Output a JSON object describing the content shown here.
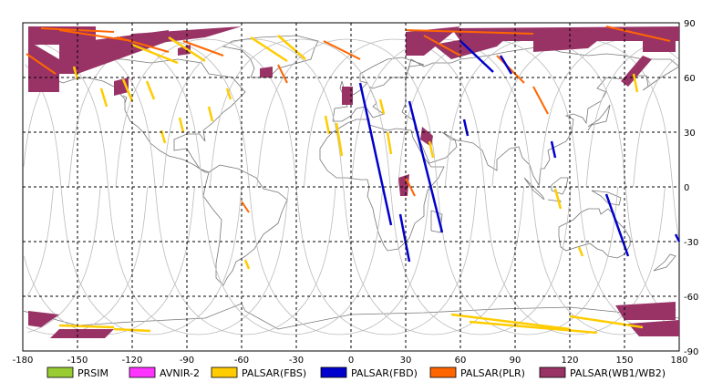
{
  "map": {
    "x_ticks": [
      "-180",
      "-150",
      "-120",
      "-90",
      "-60",
      "-30",
      "0",
      "30",
      "60",
      "90",
      "120",
      "150",
      "180"
    ],
    "y_ticks": [
      "90",
      "60",
      "30",
      "0",
      "-30",
      "-60",
      "-90"
    ],
    "lon_range": [
      -180,
      180
    ],
    "lat_range": [
      -90,
      90
    ],
    "grid": true
  },
  "legend": [
    {
      "label": "PRSIM",
      "color": "#99cc33"
    },
    {
      "label": "AVNIR-2",
      "color": "#ff33ff"
    },
    {
      "label": "PALSAR(FBS)",
      "color": "#ffcc00"
    },
    {
      "label": "PALSAR(FBD)",
      "color": "#0000cc"
    },
    {
      "label": "PALSAR(PLR)",
      "color": "#ff6600"
    },
    {
      "label": "PALSAR(WB1/WB2)",
      "color": "#993366"
    }
  ],
  "swaths": {
    "fbs": [
      [
        [
          -152,
          66
        ],
        [
          -150,
          59
        ]
      ],
      [
        [
          -137,
          54
        ],
        [
          -134,
          44
        ]
      ],
      [
        [
          -125,
          59
        ],
        [
          -120,
          47
        ]
      ],
      [
        [
          -112,
          58
        ],
        [
          -108,
          48
        ]
      ],
      [
        [
          -104,
          31
        ],
        [
          -102,
          24
        ]
      ],
      [
        [
          -94,
          38
        ],
        [
          -92,
          30
        ]
      ],
      [
        [
          -78,
          44
        ],
        [
          -76,
          36
        ]
      ],
      [
        [
          -68,
          54
        ],
        [
          -66,
          48
        ]
      ],
      [
        [
          -58,
          -40
        ],
        [
          -56,
          -45
        ]
      ],
      [
        [
          -14,
          39
        ],
        [
          -12,
          29
        ]
      ],
      [
        [
          -8,
          35
        ],
        [
          -5,
          17
        ]
      ],
      [
        [
          16,
          48
        ],
        [
          18,
          40
        ]
      ],
      [
        [
          20,
          30
        ],
        [
          22,
          18
        ]
      ],
      [
        [
          43,
          25
        ],
        [
          45,
          16
        ]
      ],
      [
        [
          112,
          -1
        ],
        [
          115,
          -12
        ]
      ],
      [
        [
          125,
          -33
        ],
        [
          127,
          -38
        ]
      ],
      [
        [
          155,
          62
        ],
        [
          157,
          52
        ]
      ],
      [
        [
          -130,
          -78
        ],
        [
          -110,
          -79
        ]
      ],
      [
        [
          -160,
          -76
        ],
        [
          -130,
          -77
        ]
      ],
      [
        [
          55,
          -70
        ],
        [
          120,
          -78
        ]
      ],
      [
        [
          65,
          -74
        ],
        [
          135,
          -80
        ]
      ],
      [
        [
          120,
          -71
        ],
        [
          160,
          -77
        ]
      ],
      [
        [
          -100,
          82
        ],
        [
          -80,
          69
        ]
      ],
      [
        [
          -55,
          82
        ],
        [
          -35,
          69
        ]
      ],
      [
        [
          -40,
          83
        ],
        [
          -25,
          70
        ]
      ],
      [
        [
          -120,
          78
        ],
        [
          -95,
          68
        ]
      ]
    ],
    "fbd": [
      [
        [
          5,
          57
        ],
        [
          22,
          -21
        ]
      ],
      [
        [
          32,
          47
        ],
        [
          50,
          -25
        ]
      ],
      [
        [
          27,
          -15
        ],
        [
          32,
          -41
        ]
      ],
      [
        [
          60,
          80
        ],
        [
          78,
          63
        ]
      ],
      [
        [
          82,
          72
        ],
        [
          88,
          62
        ]
      ],
      [
        [
          110,
          25
        ],
        [
          112,
          16
        ]
      ],
      [
        [
          140,
          -4
        ],
        [
          152,
          -38
        ]
      ],
      [
        [
          178,
          -26
        ],
        [
          180,
          -30
        ]
      ],
      [
        [
          62,
          37
        ],
        [
          64,
          28
        ]
      ]
    ],
    "plr": [
      [
        [
          -178,
          73
        ],
        [
          -162,
          62
        ]
      ],
      [
        [
          -128,
          82
        ],
        [
          -100,
          74
        ]
      ],
      [
        [
          -92,
          80
        ],
        [
          -70,
          72
        ]
      ],
      [
        [
          -15,
          80
        ],
        [
          5,
          70
        ]
      ],
      [
        [
          30,
          86
        ],
        [
          100,
          84
        ]
      ],
      [
        [
          40,
          83
        ],
        [
          60,
          72
        ]
      ],
      [
        [
          80,
          72
        ],
        [
          95,
          57
        ]
      ],
      [
        [
          100,
          55
        ],
        [
          108,
          40
        ]
      ],
      [
        [
          -60,
          -8
        ],
        [
          -56,
          -14
        ]
      ],
      [
        [
          -40,
          67
        ],
        [
          -35,
          57
        ]
      ],
      [
        [
          30,
          5
        ],
        [
          35,
          -5
        ]
      ],
      [
        [
          140,
          88
        ],
        [
          175,
          80
        ]
      ],
      [
        [
          -170,
          87
        ],
        [
          -130,
          85
        ]
      ],
      [
        [
          -160,
          86
        ],
        [
          -120,
          80
        ]
      ]
    ],
    "wb": [
      [
        [
          -177,
          88
        ],
        [
          -140,
          88
        ],
        [
          -140,
          78
        ],
        [
          -177,
          78
        ]
      ],
      [
        [
          -177,
          80
        ],
        [
          -160,
          70
        ],
        [
          -160,
          52
        ],
        [
          -177,
          52
        ]
      ],
      [
        [
          -160,
          78
        ],
        [
          -100,
          86
        ],
        [
          -100,
          80
        ],
        [
          -150,
          62
        ],
        [
          -160,
          62
        ]
      ],
      [
        [
          -120,
          84
        ],
        [
          -60,
          88
        ],
        [
          -80,
          82
        ],
        [
          -130,
          76
        ]
      ],
      [
        [
          -95,
          76
        ],
        [
          -88,
          78
        ],
        [
          -88,
          73
        ],
        [
          -95,
          72
        ]
      ],
      [
        [
          -130,
          58
        ],
        [
          -122,
          60
        ],
        [
          -122,
          52
        ],
        [
          -130,
          50
        ]
      ],
      [
        [
          -50,
          65
        ],
        [
          -43,
          66
        ],
        [
          -43,
          60
        ],
        [
          -50,
          60
        ]
      ],
      [
        [
          -5,
          55
        ],
        [
          1,
          55
        ],
        [
          1,
          45
        ],
        [
          -5,
          45
        ]
      ],
      [
        [
          30,
          85
        ],
        [
          60,
          88
        ],
        [
          40,
          72
        ],
        [
          30,
          72
        ]
      ],
      [
        [
          45,
          78
        ],
        [
          90,
          86
        ],
        [
          80,
          77
        ],
        [
          55,
          70
        ]
      ],
      [
        [
          55,
          87
        ],
        [
          180,
          88
        ],
        [
          180,
          80
        ],
        [
          60,
          80
        ]
      ],
      [
        [
          100,
          82
        ],
        [
          140,
          84
        ],
        [
          130,
          76
        ],
        [
          100,
          74
        ]
      ],
      [
        [
          160,
          80
        ],
        [
          178,
          82
        ],
        [
          178,
          74
        ],
        [
          160,
          74
        ]
      ],
      [
        [
          148,
          58
        ],
        [
          160,
          72
        ],
        [
          165,
          70
        ],
        [
          152,
          55
        ]
      ],
      [
        [
          39,
          33
        ],
        [
          45,
          28
        ],
        [
          44,
          22
        ],
        [
          38,
          26
        ]
      ],
      [
        [
          26,
          5
        ],
        [
          32,
          7
        ],
        [
          31,
          -5
        ],
        [
          27,
          -5
        ]
      ],
      [
        [
          -177,
          -68
        ],
        [
          -160,
          -70
        ],
        [
          -170,
          -77
        ],
        [
          -177,
          -76
        ]
      ],
      [
        [
          -160,
          -78
        ],
        [
          -130,
          -78
        ],
        [
          -135,
          -83
        ],
        [
          -165,
          -83
        ]
      ],
      [
        [
          145,
          -65
        ],
        [
          178,
          -63
        ],
        [
          178,
          -73
        ],
        [
          150,
          -73
        ]
      ],
      [
        [
          152,
          -75
        ],
        [
          180,
          -73
        ],
        [
          180,
          -82
        ],
        [
          158,
          -82
        ]
      ]
    ]
  }
}
